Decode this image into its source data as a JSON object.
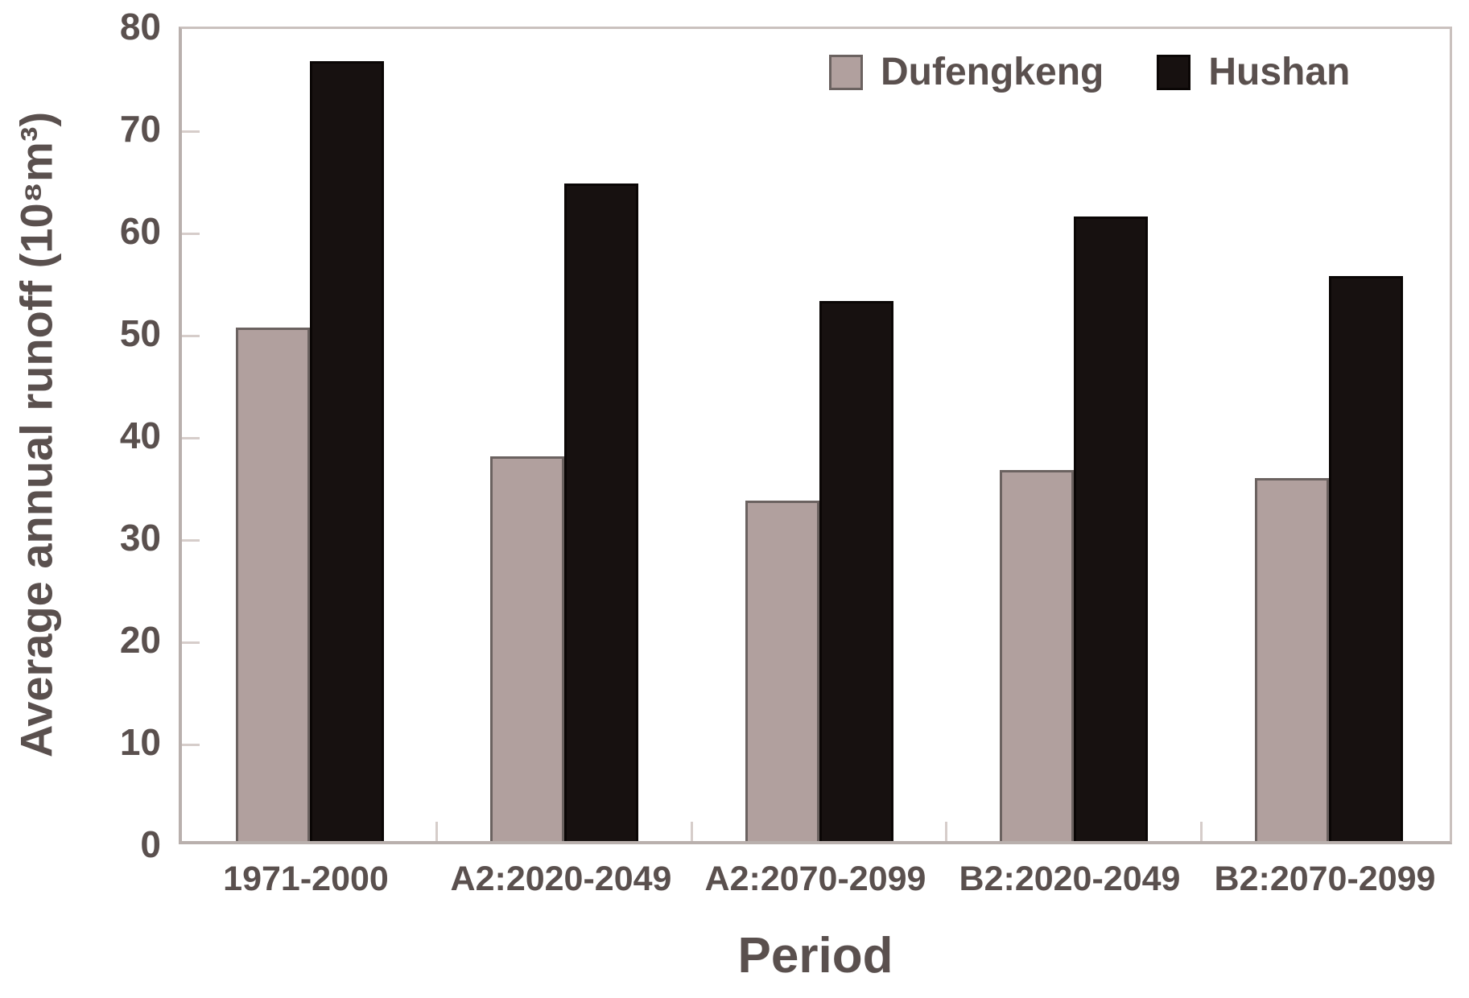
{
  "chart_data": {
    "type": "bar",
    "title": "",
    "xlabel": "Period",
    "ylabel": "Average annual runoff (10⁸m³)",
    "categories": [
      "1971-2000",
      "A2:2020-2049",
      "A2:2070-2099",
      "B2:2020-2049",
      "B2:2070-2099"
    ],
    "series": [
      {
        "name": "Dufengkeng",
        "color": "#b1a09e",
        "border_color": "#6b6260",
        "values": [
          50.2,
          37.6,
          33.3,
          36.3,
          35.5
        ]
      },
      {
        "name": "Hushan",
        "color": "#171110",
        "border_color": "#0a0605",
        "values": [
          76.3,
          64.3,
          52.8,
          61.1,
          55.3
        ]
      }
    ],
    "ylim": [
      0,
      80
    ],
    "ytick_step": 10,
    "grid": false,
    "legend_position": "top-right-inside",
    "colors": {
      "axis_line": "#b9b0ad",
      "border_line": "#cac1be",
      "tick_mark": "#d6cdca",
      "text": "#5a504e",
      "background": "#ffffff"
    }
  }
}
